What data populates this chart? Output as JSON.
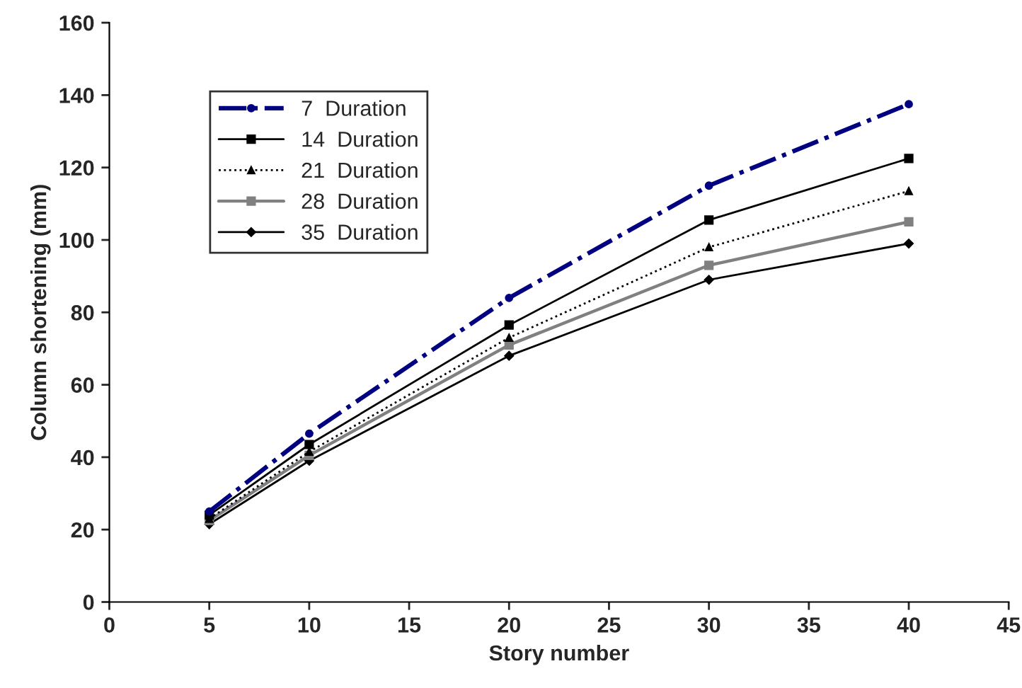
{
  "chart_data": {
    "type": "line",
    "xlabel": "Story number",
    "ylabel": "Column shortening (mm)",
    "x": [
      5,
      10,
      20,
      30,
      40
    ],
    "series": [
      {
        "name": "7  Duration",
        "color": "#000080",
        "values": [
          25,
          46.5,
          84,
          115,
          137.5
        ],
        "marker": "circle",
        "line_style": "dashed"
      },
      {
        "name": "14  Duration",
        "color": "#000000",
        "values": [
          24,
          43.5,
          76.5,
          105.5,
          122.5
        ],
        "marker": "square",
        "line_style": "solid"
      },
      {
        "name": "21  Duration",
        "color": "#000000",
        "values": [
          23,
          41.5,
          73,
          98,
          113.5
        ],
        "marker": "triangle",
        "line_style": "dotted"
      },
      {
        "name": "28  Duration",
        "color": "#808080",
        "values": [
          22.5,
          40.5,
          71,
          93,
          105
        ],
        "marker": "square",
        "line_style": "solid"
      },
      {
        "name": "35  Duration",
        "color": "#000000",
        "values": [
          21.5,
          39,
          68,
          89,
          99
        ],
        "marker": "diamond",
        "line_style": "solid"
      }
    ],
    "xlim": [
      0,
      45
    ],
    "xticks": [
      0,
      5,
      10,
      15,
      20,
      25,
      30,
      35,
      40,
      45
    ],
    "ylim": [
      0,
      160
    ],
    "yticks": [
      0,
      20,
      40,
      60,
      80,
      100,
      120,
      140,
      160
    ],
    "grid": false,
    "legend": "top left"
  }
}
